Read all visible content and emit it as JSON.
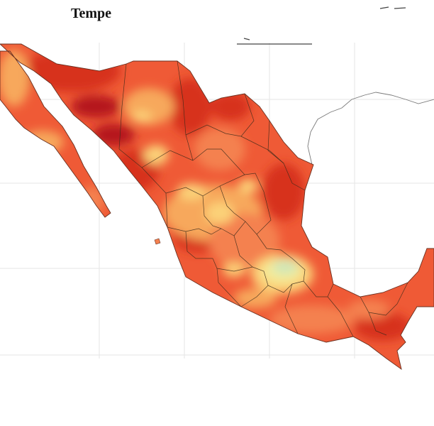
{
  "map": {
    "title": "Tempe",
    "colors": {
      "water": "#ffffff",
      "neighbor_land": "#ffffff",
      "neighbor_border": "#7a7a7a",
      "state_border": "#3a2a1a",
      "graticule": "#e6e6e6",
      "ramp": [
        "#b5121b",
        "#d7301f",
        "#ef5a36",
        "#f4814f",
        "#f7a85c",
        "#fbd178",
        "#f4ec9a",
        "#cfe6b8"
      ]
    }
  }
}
